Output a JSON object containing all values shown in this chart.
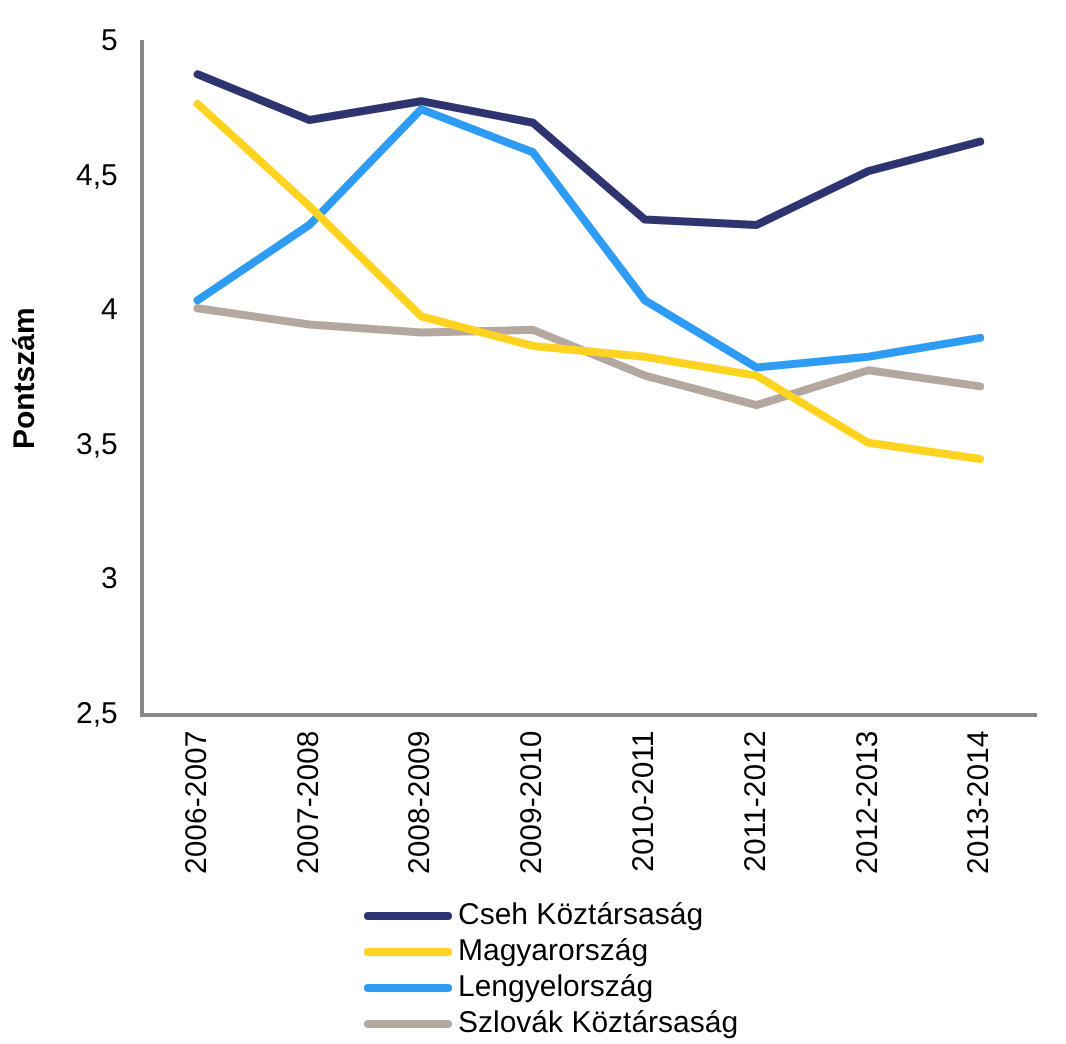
{
  "chart_data": {
    "type": "line",
    "ylabel": "Pontszám",
    "categories": [
      "2006-2007",
      "2007-2008",
      "2008-2009",
      "2009-2010",
      "2010-2011",
      "2011-2012",
      "2012-2013",
      "2013-2014"
    ],
    "series": [
      {
        "name": "Cseh Köztársaság",
        "color": "#2e3470",
        "values": [
          4.88,
          4.71,
          4.78,
          4.7,
          4.34,
          4.32,
          4.52,
          4.63
        ]
      },
      {
        "name": "Magyarország",
        "color": "#ffd320",
        "values": [
          4.77,
          4.39,
          3.98,
          3.87,
          3.83,
          3.76,
          3.51,
          3.45
        ]
      },
      {
        "name": "Lengyelország",
        "color": "#2e9bf5",
        "values": [
          4.04,
          4.32,
          4.75,
          4.59,
          4.04,
          3.79,
          3.83,
          3.9
        ]
      },
      {
        "name": "Szlovák Köztársaság",
        "color": "#b3a7a0",
        "values": [
          4.01,
          3.95,
          3.92,
          3.93,
          3.76,
          3.65,
          3.78,
          3.72
        ]
      }
    ],
    "ylim": [
      2.5,
      5
    ],
    "yticks": [
      {
        "value": 2.5,
        "label": "2,5"
      },
      3,
      {
        "value": 3.5,
        "label": "3,5"
      },
      4,
      {
        "value": 4.5,
        "label": "4,5"
      },
      5
    ],
    "grid": false,
    "legend": "bottom",
    "marker": "none",
    "line_style": "solid"
  }
}
